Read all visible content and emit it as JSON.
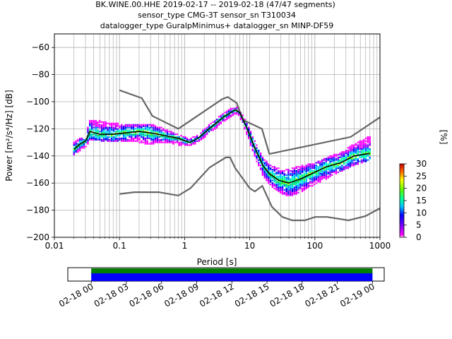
{
  "title": {
    "line1": "BK.WINE.00.HHE   2019-02-17 -- 2019-02-18  (47/47 segments)",
    "line2": "sensor_type CMG-3T sensor_sn T310034",
    "line3": "datalogger_type GuralpMinimus+ datalogger_sn MINP-DF59"
  },
  "chart_data": [
    {
      "type": "heatmap",
      "title": "BK.WINE.00.HHE   2019-02-17 -- 2019-02-18  (47/47 segments)",
      "xlabel": "Period [s]",
      "ylabel": "Power [m²/s⁴/Hz] [dB]",
      "xscale": "log",
      "xlim": [
        0.01,
        1000
      ],
      "ylim": [
        -200,
        -50
      ],
      "grid": true,
      "x_ticks": [
        {
          "value": 0.01,
          "label": "0.01"
        },
        {
          "value": 0.1,
          "label": "0.1"
        },
        {
          "value": 1,
          "label": "1"
        },
        {
          "value": 10,
          "label": "10"
        },
        {
          "value": 100,
          "label": "100"
        },
        {
          "value": 1000,
          "label": "1000"
        }
      ],
      "y_ticks": [
        {
          "value": -60,
          "label": "−60"
        },
        {
          "value": -80,
          "label": "−80"
        },
        {
          "value": -100,
          "label": "−100"
        },
        {
          "value": -120,
          "label": "−120"
        },
        {
          "value": -140,
          "label": "−140"
        },
        {
          "value": -160,
          "label": "−160"
        },
        {
          "value": -180,
          "label": "−180"
        },
        {
          "value": -200,
          "label": "−200"
        }
      ],
      "colorbar": {
        "label": "[%]",
        "range": [
          0,
          30
        ],
        "ticks": [
          {
            "value": 0,
            "label": "0"
          },
          {
            "value": 5,
            "label": "5"
          },
          {
            "value": 10,
            "label": "10"
          },
          {
            "value": 15,
            "label": "15"
          },
          {
            "value": 20,
            "label": "20"
          },
          {
            "value": 25,
            "label": "25"
          },
          {
            "value": 30,
            "label": "30"
          }
        ]
      },
      "nhnm": {
        "x": [
          0.1,
          0.22,
          0.32,
          0.8,
          3.8,
          4.6,
          6.3,
          7.9,
          15.4,
          20,
          354.8,
          1000
        ],
        "y": [
          -91.5,
          -97.4,
          -110.5,
          -120,
          -98,
          -96.5,
          -101,
          -113.5,
          -120,
          -138.5,
          -126,
          -111.5
        ]
      },
      "nlnm": {
        "x": [
          0.1,
          0.17,
          0.4,
          0.8,
          1.24,
          2.4,
          4.3,
          5,
          6,
          10,
          12,
          15.6,
          21.9,
          31.6,
          45,
          70,
          101,
          154,
          328,
          600,
          1000
        ],
        "y": [
          -168,
          -166.7,
          -166.7,
          -169.2,
          -163.7,
          -148.6,
          -141.1,
          -141.1,
          -149,
          -163.8,
          -166.2,
          -162.1,
          -177.5,
          -185,
          -187.5,
          -187.5,
          -185,
          -185,
          -187.5,
          -184.4,
          -178.6
        ]
      },
      "psd_median": {
        "x": [
          0.02,
          0.025,
          0.03,
          0.035,
          0.05,
          0.08,
          0.12,
          0.2,
          0.3,
          0.5,
          0.8,
          1.2,
          1.6,
          2.5,
          4,
          6,
          7,
          9,
          12,
          16,
          20,
          28,
          40,
          60,
          100,
          150,
          250,
          400,
          700
        ],
        "y": [
          -135,
          -131,
          -129,
          -122,
          -124,
          -124,
          -123,
          -122,
          -123,
          -125,
          -127,
          -130,
          -127,
          -119,
          -111,
          -106,
          -108,
          -119,
          -134,
          -147,
          -153,
          -158,
          -160,
          -157,
          -152,
          -148,
          -145,
          -140,
          -138
        ]
      },
      "psd_mode": {
        "x": [
          0.02,
          0.025,
          0.03,
          0.035,
          0.05,
          0.08,
          0.12,
          0.2,
          0.3,
          0.5,
          0.8,
          1.2,
          1.6,
          2.5,
          4,
          6,
          7,
          9,
          12,
          16,
          20,
          28,
          40,
          60,
          100,
          150,
          250,
          400,
          700
        ],
        "y": [
          -136,
          -132,
          -130,
          -124,
          -125,
          -124,
          -124,
          -124,
          -125,
          -126,
          -128,
          -130,
          -127,
          -120,
          -112,
          -106,
          -108,
          -120,
          -135,
          -148,
          -154,
          -160,
          -162,
          -158,
          -152,
          -148,
          -145,
          -140,
          -139
        ]
      },
      "psd_spread": {
        "x": [
          0.02,
          0.03,
          0.035,
          0.05,
          0.1,
          0.2,
          0.3,
          0.5,
          0.8,
          1.2,
          1.6,
          2.5,
          4,
          6,
          7,
          9,
          12,
          16,
          20,
          28,
          40,
          60,
          100,
          150,
          250,
          400,
          700
        ],
        "upper": [
          -130,
          -126,
          -114,
          -115,
          -117,
          -118,
          -117,
          -121,
          -125,
          -128,
          -125,
          -117,
          -109,
          -104,
          -106,
          -116,
          -130,
          -142,
          -147,
          -150,
          -150,
          -148,
          -146,
          -142,
          -138,
          -132,
          -126
        ],
        "lower": [
          -139,
          -133,
          -128,
          -128,
          -129,
          -129,
          -131,
          -129,
          -131,
          -132,
          -129,
          -122,
          -114,
          -108,
          -110,
          -123,
          -140,
          -154,
          -160,
          -166,
          -169,
          -166,
          -160,
          -156,
          -151,
          -146,
          -142
        ]
      }
    },
    {
      "type": "bar",
      "title": "",
      "xlabel": "",
      "ylabel": "",
      "x_ticks": [
        {
          "label": "02-18 00"
        },
        {
          "label": "02-18 03"
        },
        {
          "label": "02-18 06"
        },
        {
          "label": "02-18 09"
        },
        {
          "label": "02-18 12"
        },
        {
          "label": "02-18 15"
        },
        {
          "label": "02-18 18"
        },
        {
          "label": "02-18 21"
        },
        {
          "label": "02-19 00"
        }
      ],
      "xlim_hours": [
        -2,
        25
      ],
      "segments": [
        {
          "start_hour": 0,
          "end_hour": 24,
          "color": "#0000ff"
        },
        {
          "start_hour": 0,
          "end_hour": 24,
          "color": "#008000"
        }
      ]
    }
  ]
}
